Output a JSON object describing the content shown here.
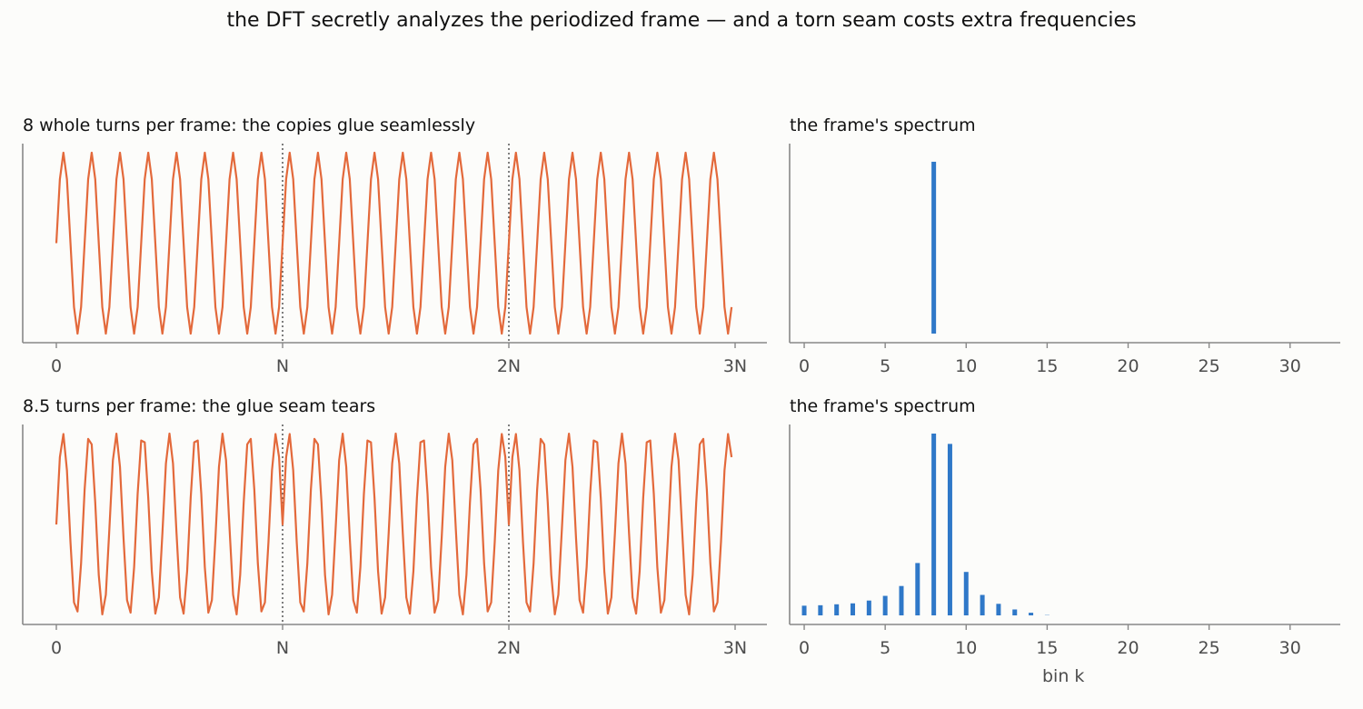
{
  "figure": {
    "suptitle": "the DFT secretly analyzes the periodized frame — and a torn seam costs extra frequencies"
  },
  "colors": {
    "signal": "#e3693b",
    "bars": "#2f78c8",
    "axis": "#888888",
    "tick_text": "#4d4d4d",
    "seam": "#555555",
    "background": "#fcfcfa"
  },
  "chart_data": [
    {
      "id": "signal_top",
      "type": "line",
      "title": "8 whole turns per frame:  the copies glue seamlessly",
      "frame_length": 64,
      "turns_per_frame": 8,
      "copies": 3,
      "xticks": [
        0,
        1,
        2,
        3
      ],
      "xtick_labels": [
        "0",
        "N",
        "2N",
        "3N"
      ],
      "seam_lines": [
        1,
        2
      ],
      "ylim": [
        -1.1,
        1.1
      ],
      "yticks": "none",
      "xlabel": "",
      "ylabel": ""
    },
    {
      "id": "spectrum_top",
      "type": "bar",
      "title": "the frame's spectrum",
      "x": [
        0,
        1,
        2,
        3,
        4,
        5,
        6,
        7,
        8,
        9,
        10,
        11,
        12,
        13,
        14,
        15,
        16,
        17,
        18,
        19,
        20,
        21,
        22,
        23,
        24,
        25,
        26,
        27,
        28,
        29,
        30,
        31,
        32
      ],
      "values": [
        0,
        0,
        0,
        0,
        0,
        0,
        0,
        0,
        32,
        0,
        0,
        0,
        0,
        0,
        0,
        0,
        0,
        0,
        0,
        0,
        0,
        0,
        0,
        0,
        0,
        0,
        0,
        0,
        0,
        0,
        0,
        0,
        0
      ],
      "xticks": [
        0,
        5,
        10,
        15,
        20,
        25,
        30
      ],
      "xlim": [
        -0.9,
        33.1
      ],
      "ylim": [
        0,
        33.6
      ],
      "yticks": "none",
      "xlabel": "",
      "ylabel": ""
    },
    {
      "id": "signal_bottom",
      "type": "line",
      "title": "8.5 turns per frame:  the glue seam tears",
      "frame_length": 64,
      "turns_per_frame": 8.5,
      "copies": 3,
      "xticks": [
        0,
        1,
        2,
        3
      ],
      "xtick_labels": [
        "0",
        "N",
        "2N",
        "3N"
      ],
      "seam_lines": [
        1,
        2
      ],
      "ylim": [
        -1.1,
        1.1
      ],
      "yticks": "none",
      "xlabel": "",
      "ylabel": ""
    },
    {
      "id": "spectrum_bottom",
      "type": "bar",
      "title": "the frame's spectrum",
      "x": [
        0,
        1,
        2,
        3,
        4,
        5,
        6,
        7,
        8,
        9,
        10,
        11,
        12,
        13,
        14,
        15,
        16,
        17,
        18,
        19,
        20,
        21,
        22,
        23,
        24,
        25,
        26,
        27,
        28,
        29,
        30,
        31,
        32
      ],
      "values": [
        4.0,
        4.1,
        4.3,
        4.5,
        5.1,
        6.1,
        8.2,
        13.1,
        40.7,
        38.5,
        11.2,
        6.3,
        4.4,
        3.2,
        2.5,
        2.0,
        1.6,
        1.3,
        1.1,
        0.95,
        0.8,
        0.7,
        0.62,
        0.55,
        0.5,
        0.46,
        0.42,
        0.4,
        0.38,
        0.36,
        0.35,
        0.34,
        0.34
      ],
      "xticks": [
        0,
        5,
        10,
        15,
        20,
        25,
        30
      ],
      "xlim": [
        -0.9,
        33.1
      ],
      "ylim": [
        0,
        40.7
      ],
      "yticks": "none",
      "xlabel": "bin k",
      "ylabel": ""
    }
  ]
}
